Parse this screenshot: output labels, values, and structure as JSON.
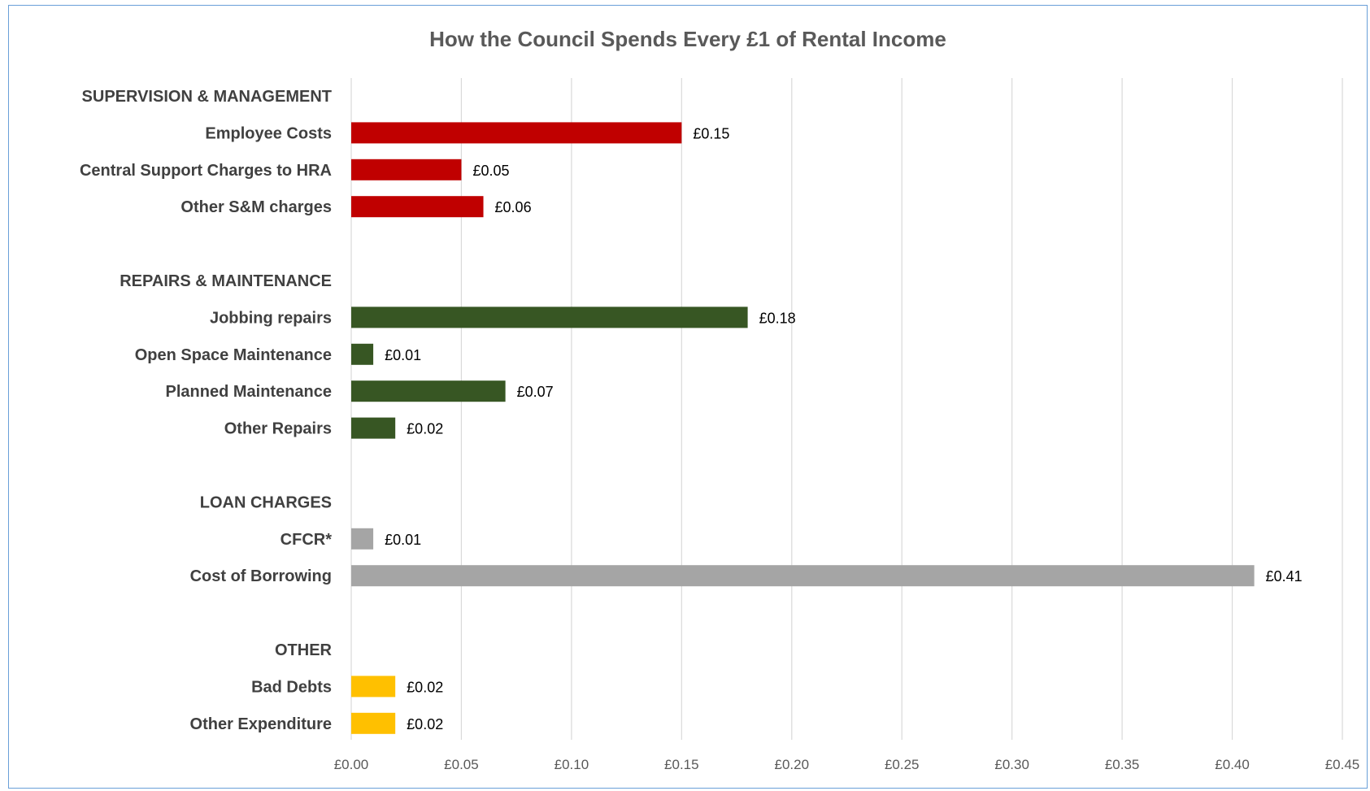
{
  "chart_data": {
    "type": "bar",
    "orientation": "horizontal",
    "title": "How the Council Spends Every £1 of Rental Income",
    "xlabel": "",
    "ylabel": "",
    "xlim": [
      0,
      0.45
    ],
    "x_ticks": [
      "£0.00",
      "£0.05",
      "£0.10",
      "£0.15",
      "£0.20",
      "£0.25",
      "£0.30",
      "£0.35",
      "£0.40",
      "£0.45"
    ],
    "x_tick_values": [
      0,
      0.05,
      0.1,
      0.15,
      0.2,
      0.25,
      0.3,
      0.35,
      0.4,
      0.45
    ],
    "grid": "vertical",
    "legend": "none",
    "groups": [
      {
        "name": "SUPERVISION & MANAGEMENT",
        "color": "#c00000",
        "items": [
          {
            "label": "Employee Costs",
            "value": 0.15,
            "value_label": "£0.15"
          },
          {
            "label": "Central Support Charges to HRA",
            "value": 0.05,
            "value_label": "£0.05"
          },
          {
            "label": "Other S&M charges",
            "value": 0.06,
            "value_label": "£0.06"
          }
        ]
      },
      {
        "name": "REPAIRS & MAINTENANCE",
        "color": "#375623",
        "items": [
          {
            "label": "Jobbing repairs",
            "value": 0.18,
            "value_label": "£0.18"
          },
          {
            "label": "Open Space Maintenance",
            "value": 0.01,
            "value_label": "£0.01"
          },
          {
            "label": "Planned Maintenance",
            "value": 0.07,
            "value_label": "£0.07"
          },
          {
            "label": "Other Repairs",
            "value": 0.02,
            "value_label": "£0.02"
          }
        ]
      },
      {
        "name": "LOAN CHARGES",
        "color": "#a5a5a5",
        "items": [
          {
            "label": "CFCR*",
            "value": 0.01,
            "value_label": "£0.01"
          },
          {
            "label": "Cost of Borrowing",
            "value": 0.41,
            "value_label": "£0.41"
          }
        ]
      },
      {
        "name": "OTHER",
        "color": "#ffc000",
        "items": [
          {
            "label": "Bad Debts",
            "value": 0.02,
            "value_label": "£0.02"
          },
          {
            "label": "Other Expenditure",
            "value": 0.02,
            "value_label": "£0.02"
          }
        ]
      }
    ],
    "colors": {
      "gridline": "#d9d9d9",
      "frame": "#6a9fd8"
    }
  }
}
